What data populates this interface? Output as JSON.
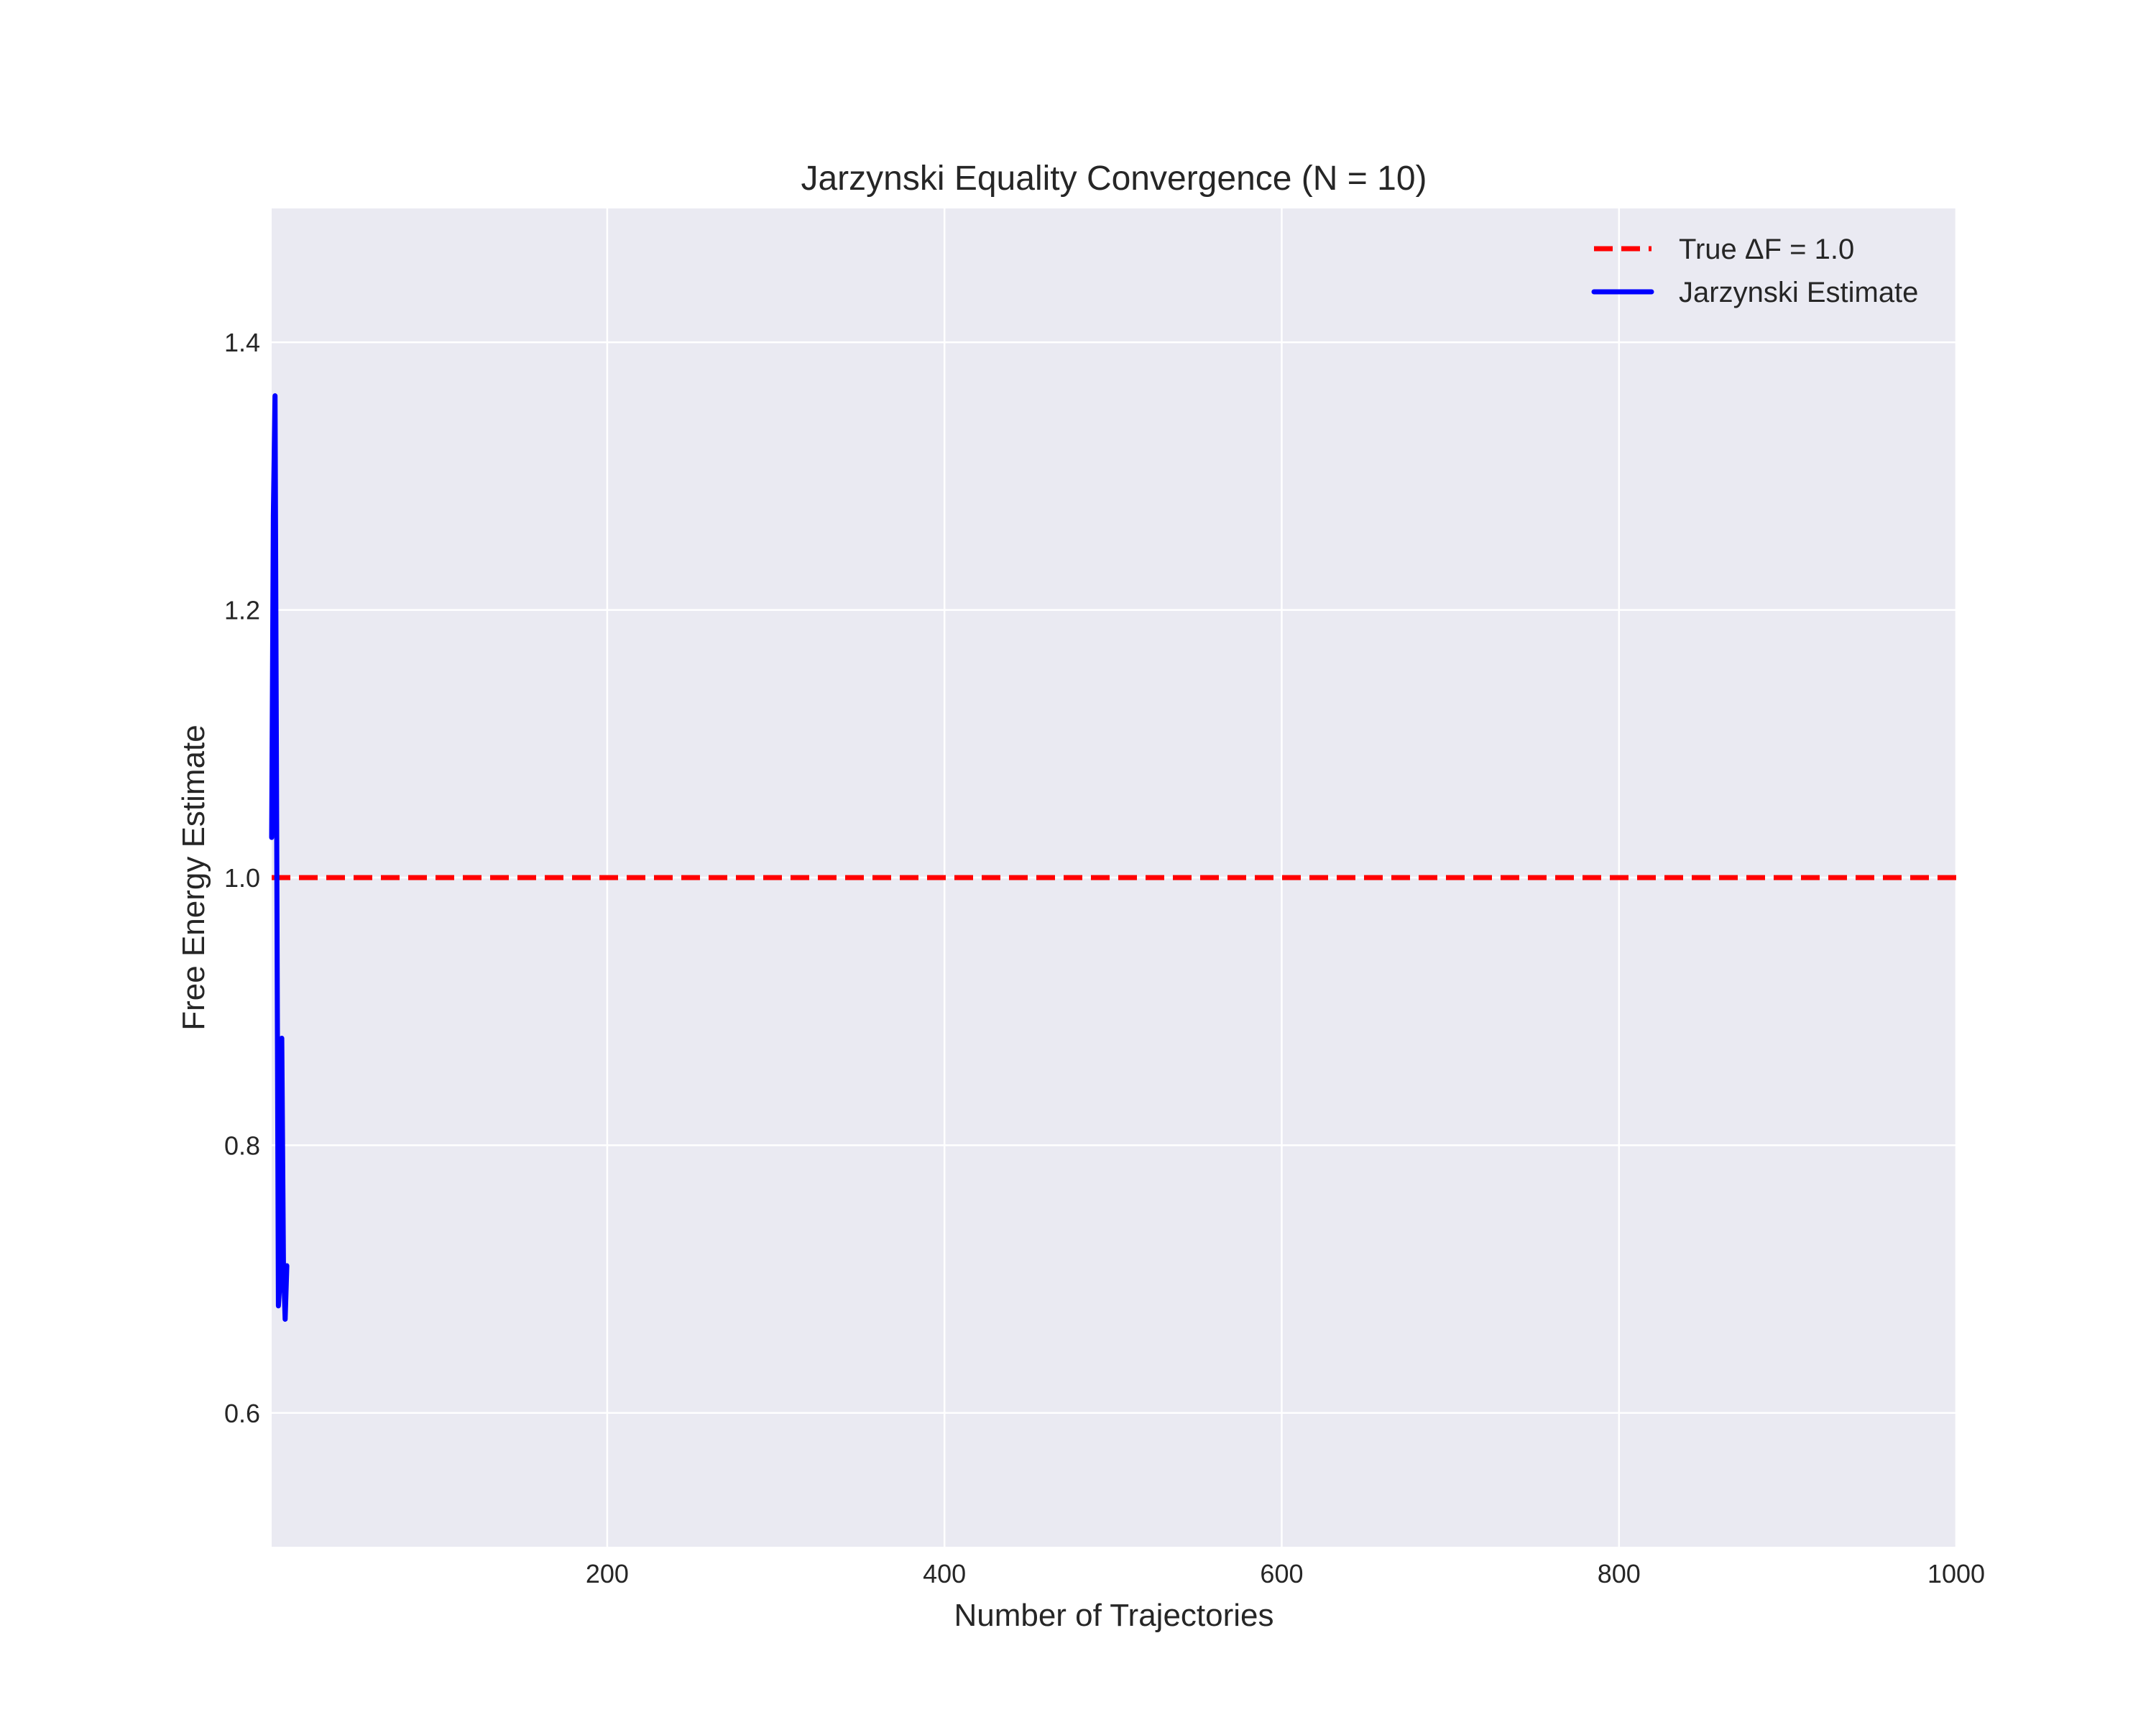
{
  "chart_data": {
    "type": "line",
    "title": "Jarzynski Equality Convergence (N = 10)",
    "xlabel": "Number of Trajectories",
    "ylabel": "Free Energy Estimate",
    "xlim": [
      1,
      1000
    ],
    "ylim": [
      0.5,
      1.5
    ],
    "xticks": [
      200,
      400,
      600,
      800,
      1000
    ],
    "xtick_labels": [
      "200",
      "400",
      "600",
      "800",
      "1000"
    ],
    "yticks": [
      0.6,
      0.8,
      1.0,
      1.2,
      1.4
    ],
    "ytick_labels": [
      "0.6",
      "0.8",
      "1.0",
      "1.2",
      "1.4"
    ],
    "grid": true,
    "legend_position": "top-right",
    "reference_line": {
      "name": "True ΔF = 1.0",
      "y": 1.0,
      "color": "#ff0000",
      "style": "dashed"
    },
    "series": [
      {
        "name": "Jarzynski Estimate",
        "color": "#0000ff",
        "x": [
          1,
          2,
          3,
          4,
          5,
          6,
          7,
          8,
          9,
          10
        ],
        "y": [
          1.03,
          1.27,
          1.36,
          1.03,
          0.68,
          0.7,
          0.88,
          0.71,
          0.67,
          0.71
        ]
      }
    ]
  }
}
